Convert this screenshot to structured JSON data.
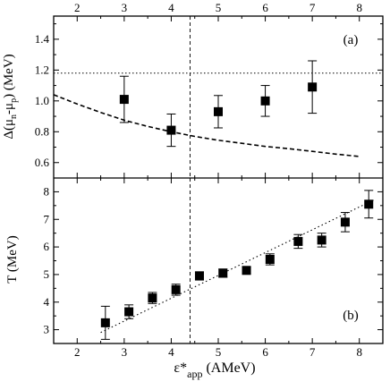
{
  "chart_data": [
    {
      "type": "scatter",
      "panel_label": "(a)",
      "ylabel": {
        "main": "Δ(μ",
        "sub1": "n",
        "mid": "-μ",
        "sub2": "p",
        "tail": ") (MeV)"
      },
      "xlim": [
        1.5,
        8.5
      ],
      "ylim": [
        0.5,
        1.55
      ],
      "x_ticks": [
        "2",
        "3",
        "4",
        "5",
        "6",
        "7",
        "8"
      ],
      "y_ticks": [
        "0.6",
        "0.8",
        "1.0",
        "1.2",
        "1.4"
      ],
      "grid": false,
      "series": [
        {
          "style": "square-markers-with-error-bars",
          "x": [
            3.0,
            4.0,
            5.0,
            6.0,
            7.0
          ],
          "y": [
            1.01,
            0.81,
            0.93,
            1.0,
            1.09
          ],
          "yerr": [
            0.15,
            0.105,
            0.105,
            0.1,
            0.17
          ]
        },
        {
          "style": "dashed-curve",
          "x": [
            1.5,
            2.0,
            2.5,
            3.0,
            3.5,
            4.0,
            4.5,
            5.0,
            5.5,
            6.0,
            6.5,
            7.0,
            7.5,
            8.0
          ],
          "y": [
            1.04,
            0.98,
            0.925,
            0.875,
            0.835,
            0.8,
            0.77,
            0.745,
            0.725,
            0.705,
            0.69,
            0.673,
            0.655,
            0.64
          ]
        }
      ],
      "hline": {
        "y": 1.18,
        "style": "dotted"
      },
      "vline": {
        "x": 4.4,
        "style": "dashed"
      }
    },
    {
      "type": "scatter",
      "panel_label": "(b)",
      "ylabel": "T (MeV)",
      "xlabel": {
        "main": "ε*",
        "sub": "app",
        "tail": " (AMeV)"
      },
      "xlim": [
        1.5,
        8.5
      ],
      "ylim": [
        2.5,
        8.5
      ],
      "x_ticks": [
        "2",
        "3",
        "4",
        "5",
        "6",
        "7",
        "8"
      ],
      "y_ticks": [
        "3",
        "4",
        "5",
        "6",
        "7",
        "8"
      ],
      "grid": false,
      "series": [
        {
          "style": "square-markers-with-error-bars",
          "x": [
            2.6,
            3.1,
            3.6,
            4.1,
            4.6,
            5.1,
            5.6,
            6.1,
            6.7,
            7.2,
            7.7,
            8.2
          ],
          "y": [
            3.25,
            3.65,
            4.15,
            4.45,
            4.95,
            5.05,
            5.15,
            5.55,
            6.2,
            6.25,
            6.9,
            7.55
          ],
          "yerr": [
            0.6,
            0.25,
            0.2,
            0.2,
            0.15,
            0.15,
            0.12,
            0.2,
            0.25,
            0.25,
            0.35,
            0.5
          ]
        },
        {
          "style": "dotted-line",
          "x": [
            2.5,
            8.3
          ],
          "y": [
            2.9,
            7.7
          ]
        }
      ],
      "vline": {
        "x": 4.4,
        "style": "dashed"
      }
    }
  ]
}
